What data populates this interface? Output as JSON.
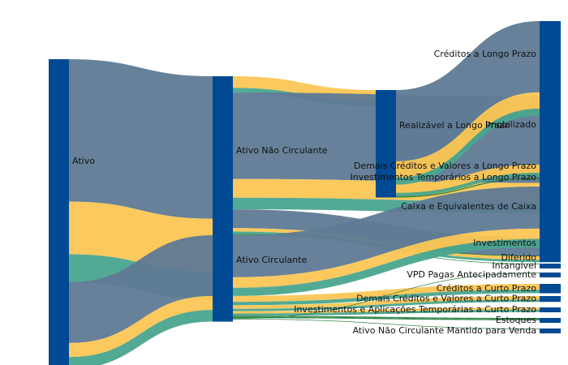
{
  "chart_data": {
    "type": "sankey",
    "title": "",
    "colors": {
      "node": "#004a94",
      "band_a": "#5f7a95",
      "band_b": "#fbc654",
      "band_c": "#4aa58e",
      "thin_link": "#1f7a3a"
    },
    "nodes": [
      {
        "id": "ativo",
        "label": "Ativo"
      },
      {
        "id": "anc",
        "label": "Ativo Não Circulante"
      },
      {
        "id": "ac",
        "label": "Ativo Circulante"
      },
      {
        "id": "rlp",
        "label": "Realizável a Longo Prazo"
      },
      {
        "id": "clp",
        "label": "Créditos a Longo Prazo"
      },
      {
        "id": "imob",
        "label": "Imobilizado"
      },
      {
        "id": "dcvlp",
        "label": "Demais Créditos e Valores a Longo Prazo"
      },
      {
        "id": "itlp",
        "label": "Investimentos Temporários a Longo Prazo"
      },
      {
        "id": "cec",
        "label": "Caixa e Equivalentes de Caixa"
      },
      {
        "id": "inv",
        "label": "Investimentos"
      },
      {
        "id": "dif",
        "label": "Diferido"
      },
      {
        "id": "intg",
        "label": "Intangível"
      },
      {
        "id": "vpd",
        "label": "VPD Pagas Antecipadamente"
      },
      {
        "id": "ccp",
        "label": "Créditos a Curto Prazo"
      },
      {
        "id": "dcvcp",
        "label": "Demais Créditos e Valores a Curto Prazo"
      },
      {
        "id": "iatcp",
        "label": "Investimentos e Aplicações Temporárias a Curto Prazo"
      },
      {
        "id": "est",
        "label": "Estoques"
      },
      {
        "id": "ancmv",
        "label": "Ativo Não Circulante Mantido para Venda"
      }
    ],
    "links": [
      {
        "source": "ativo",
        "target": "anc",
        "values": [
          122,
          45,
          24
        ]
      },
      {
        "source": "ativo",
        "target": "ac",
        "values": [
          52,
          12,
          10
        ]
      },
      {
        "source": "anc",
        "target": "rlp",
        "values": [
          0,
          10,
          4
        ]
      },
      {
        "source": "anc",
        "target": "imob",
        "values": [
          74,
          16,
          10
        ]
      },
      {
        "source": "anc",
        "target": "inv",
        "values": [
          16,
          3,
          2
        ]
      },
      {
        "source": "anc",
        "target": "dif",
        "values": [
          0,
          0,
          0.5
        ]
      },
      {
        "source": "anc",
        "target": "intg",
        "values": [
          0,
          0,
          0.5
        ]
      },
      {
        "source": "rlp",
        "target": "clp",
        "values": [
          61,
          14,
          6
        ]
      },
      {
        "source": "rlp",
        "target": "dcvlp",
        "values": [
          0,
          7,
          3
        ]
      },
      {
        "source": "rlp",
        "target": "itlp",
        "values": [
          0,
          0,
          1
        ]
      },
      {
        "source": "ac",
        "target": "cec",
        "values": [
          36,
          9,
          7
        ]
      },
      {
        "source": "ac",
        "target": "ccp",
        "values": [
          0,
          5,
          3
        ]
      },
      {
        "source": "ac",
        "target": "dcvcp",
        "values": [
          0,
          3,
          2
        ]
      },
      {
        "source": "ac",
        "target": "iatcp",
        "values": [
          0,
          2,
          2
        ]
      },
      {
        "source": "ac",
        "target": "est",
        "values": [
          0,
          1,
          1
        ]
      },
      {
        "source": "ac",
        "target": "vpd",
        "values": [
          0,
          0,
          0.5
        ]
      },
      {
        "source": "ac",
        "target": "ancmv",
        "values": [
          0,
          0,
          0.5
        ]
      }
    ]
  }
}
